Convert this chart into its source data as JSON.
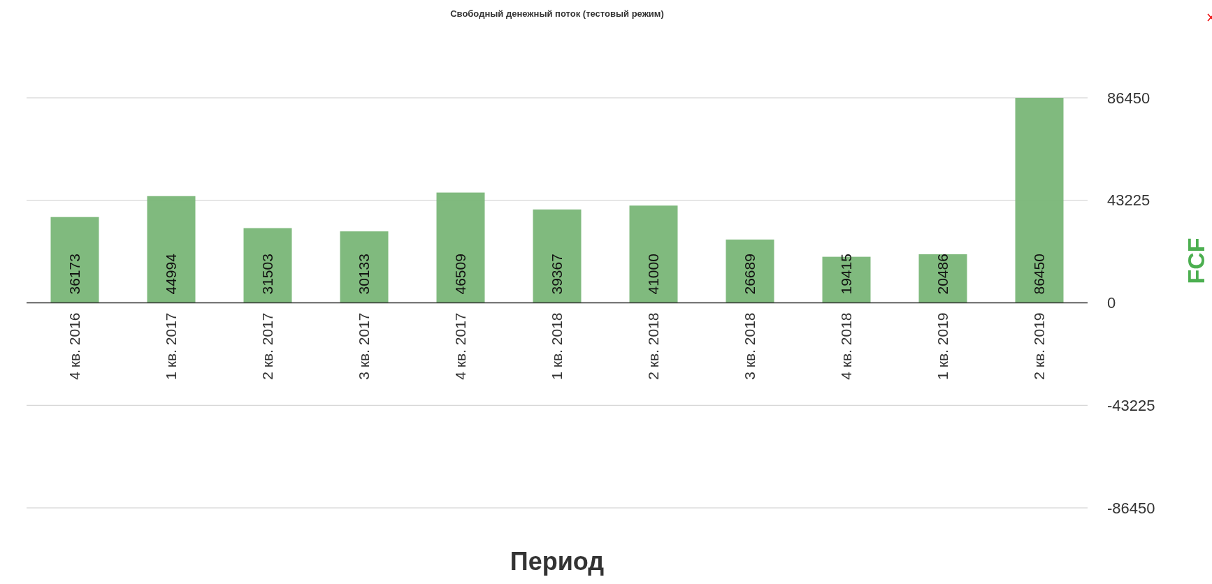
{
  "chart_data": {
    "type": "bar",
    "title": "Свободный денежный поток (тестовый режим)",
    "xlabel": "Период",
    "ylabel": "FCF",
    "categories": [
      "4 кв. 2016",
      "1 кв. 2017",
      "2 кв. 2017",
      "3 кв. 2017",
      "4 кв. 2017",
      "1 кв. 2018",
      "2 кв. 2018",
      "3 кв. 2018",
      "4 кв. 2018",
      "1 кв. 2019",
      "2 кв. 2019"
    ],
    "values": [
      36173,
      44994,
      31503,
      30133,
      46509,
      39367,
      41000,
      26689,
      19415,
      20486,
      86450
    ],
    "color": "#7cb87a",
    "ylim": [
      -86450,
      86450
    ],
    "yticks": [
      -86450,
      -43225,
      0,
      43225,
      86450
    ],
    "grid": true,
    "data_labels": true
  }
}
